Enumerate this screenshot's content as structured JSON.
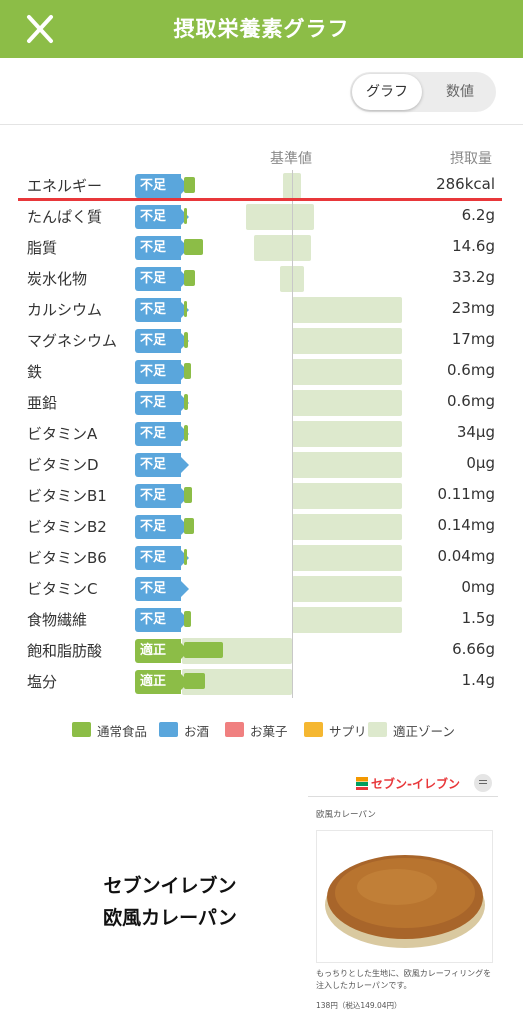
{
  "header": {
    "title": "摂取栄養素グラフ"
  },
  "toggle": {
    "graph_label": "グラフ",
    "numbers_label": "数値",
    "selected": "グラフ"
  },
  "columns": {
    "standard": "基準値",
    "intake": "摂取量"
  },
  "colors": {
    "accent": "#8cbd47",
    "short_badge": "#5aa6dc",
    "zone": "#dde9cd",
    "highlight_line": "#e8373a"
  },
  "chart_data": {
    "type": "bar",
    "rows": [
      {
        "name": "エネルギー",
        "status": "不足",
        "value": "286kcal",
        "bar": 0.1,
        "zone": [
          -0.08,
          0.08
        ]
      },
      {
        "name": "たんぱく質",
        "status": "不足",
        "value": "6.2g",
        "bar": 0.03,
        "zone": [
          -0.42,
          0.2
        ]
      },
      {
        "name": "脂質",
        "status": "不足",
        "value": "14.6g",
        "bar": 0.17,
        "zone": [
          -0.35,
          0.17
        ]
      },
      {
        "name": "炭水化物",
        "status": "不足",
        "value": "33.2g",
        "bar": 0.1,
        "zone": [
          -0.11,
          0.11
        ]
      },
      {
        "name": "カルシウム",
        "status": "不足",
        "value": "23mg",
        "bar": 0.03,
        "zone": [
          0,
          1
        ]
      },
      {
        "name": "マグネシウム",
        "status": "不足",
        "value": "17mg",
        "bar": 0.04,
        "zone": [
          0,
          1
        ]
      },
      {
        "name": "鉄",
        "status": "不足",
        "value": "0.6mg",
        "bar": 0.06,
        "zone": [
          0,
          1
        ]
      },
      {
        "name": "亜鉛",
        "status": "不足",
        "value": "0.6mg",
        "bar": 0.04,
        "zone": [
          0,
          1
        ]
      },
      {
        "name": "ビタミンA",
        "status": "不足",
        "value": "34μg",
        "bar": 0.04,
        "zone": [
          0,
          1
        ]
      },
      {
        "name": "ビタミンD",
        "status": "不足",
        "value": "0μg",
        "bar": 0,
        "zone": [
          0,
          1
        ]
      },
      {
        "name": "ビタミンB1",
        "status": "不足",
        "value": "0.11mg",
        "bar": 0.07,
        "zone": [
          0,
          1
        ]
      },
      {
        "name": "ビタミンB2",
        "status": "不足",
        "value": "0.14mg",
        "bar": 0.09,
        "zone": [
          0,
          1
        ]
      },
      {
        "name": "ビタミンB6",
        "status": "不足",
        "value": "0.04mg",
        "bar": 0.03,
        "zone": [
          0,
          1
        ]
      },
      {
        "name": "ビタミンC",
        "status": "不足",
        "value": "0mg",
        "bar": 0,
        "zone": [
          0,
          1
        ]
      },
      {
        "name": "食物繊維",
        "status": "不足",
        "value": "1.5g",
        "bar": 0.06,
        "zone": [
          0,
          1
        ]
      },
      {
        "name": "飽和脂肪酸",
        "status": "適正",
        "value": "6.66g",
        "bar": 0.35,
        "zone": [
          -1,
          0
        ]
      },
      {
        "name": "塩分",
        "status": "適正",
        "value": "1.4g",
        "bar": 0.19,
        "zone": [
          -1,
          0
        ]
      }
    ]
  },
  "legend": [
    {
      "label": "通常食品",
      "color": "#8cbd47"
    },
    {
      "label": "お酒",
      "color": "#5aa6dc"
    },
    {
      "label": "お菓子",
      "color": "#f08080"
    },
    {
      "label": "サプリ",
      "color": "#f5b731"
    },
    {
      "label": "適正ゾーン",
      "color": "#dde9cd"
    }
  ],
  "product": {
    "name_line1": "セブンイレブン",
    "name_line2": "欧風カレーパン",
    "card": {
      "logo": "セブン-イレブン",
      "title": "欧風カレーパン",
      "description": "もっちりとした生地に、欧風カレーフィリングを注入したカレーパンです。",
      "price": "138円（税込149.04円）"
    }
  }
}
